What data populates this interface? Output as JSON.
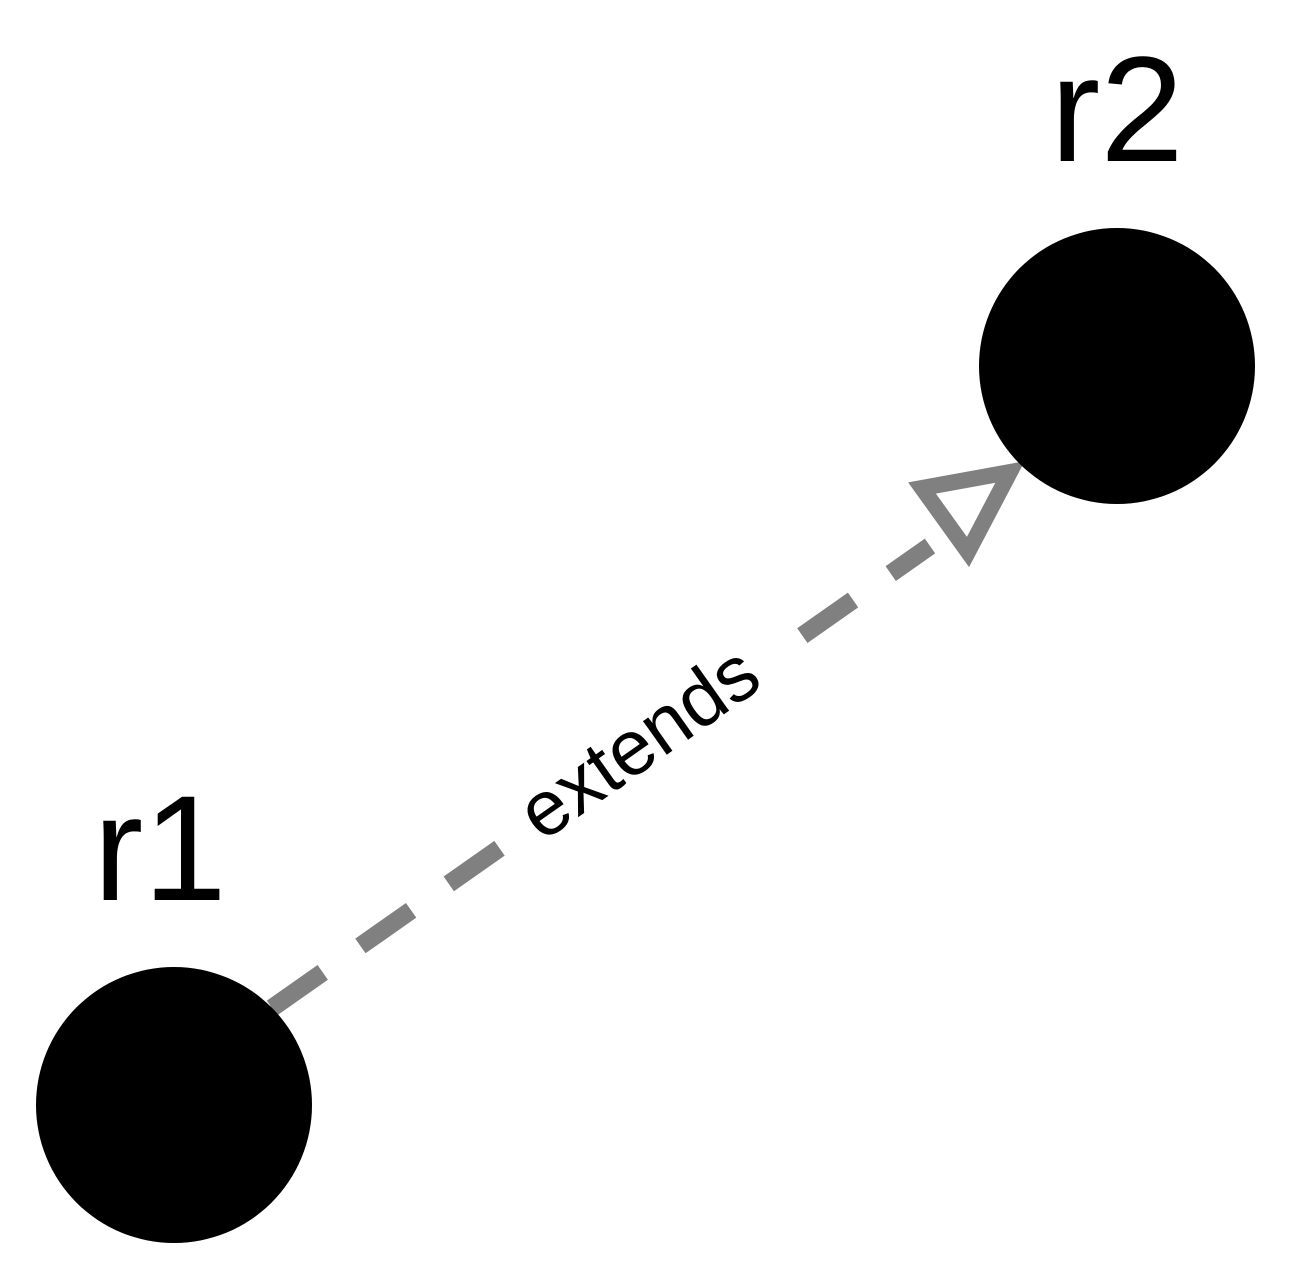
{
  "diagram": {
    "nodes": [
      {
        "id": "r1",
        "label": "r1"
      },
      {
        "id": "r2",
        "label": "r2"
      }
    ],
    "edges": [
      {
        "from": "r1",
        "to": "r2",
        "label": "extends",
        "style": "dashed",
        "arrowhead": "hollow-triangle"
      }
    ]
  },
  "colors": {
    "node_fill": "#000000",
    "edge_stroke": "#808080",
    "label_text": "#000000",
    "background": "#ffffff"
  }
}
